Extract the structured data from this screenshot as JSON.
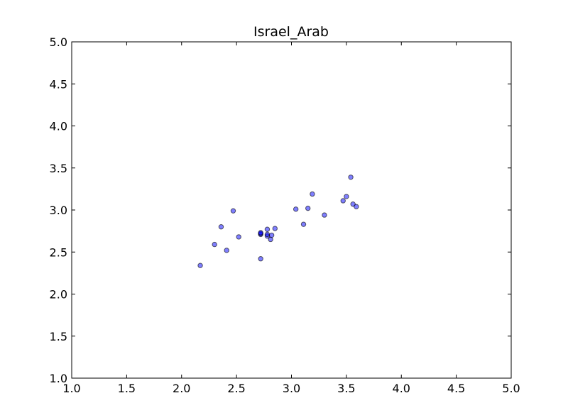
{
  "chart_data": {
    "type": "scatter",
    "title": "Israel_Arab",
    "xlabel": "",
    "ylabel": "",
    "xlim": [
      1.0,
      5.0
    ],
    "ylim": [
      1.0,
      5.0
    ],
    "xticks": [
      "1.0",
      "1.5",
      "2.0",
      "2.5",
      "3.0",
      "3.5",
      "4.0",
      "4.5",
      "5.0"
    ],
    "yticks": [
      "1.0",
      "1.5",
      "2.0",
      "2.5",
      "3.0",
      "3.5",
      "4.0",
      "4.5",
      "5.0"
    ],
    "grid": false,
    "series": [
      {
        "name": "Israel_Arab",
        "color": "#0000ff",
        "points": [
          [
            2.17,
            2.34
          ],
          [
            2.3,
            2.59
          ],
          [
            2.36,
            2.8
          ],
          [
            2.41,
            2.52
          ],
          [
            2.47,
            2.99
          ],
          [
            2.52,
            2.68
          ],
          [
            2.72,
            2.42
          ],
          [
            2.72,
            2.71
          ],
          [
            2.72,
            2.72
          ],
          [
            2.72,
            2.73
          ],
          [
            2.78,
            2.69
          ],
          [
            2.78,
            2.71
          ],
          [
            2.78,
            2.77
          ],
          [
            2.81,
            2.65
          ],
          [
            2.82,
            2.7
          ],
          [
            2.85,
            2.78
          ],
          [
            3.04,
            3.01
          ],
          [
            3.11,
            2.83
          ],
          [
            3.15,
            3.02
          ],
          [
            3.19,
            3.19
          ],
          [
            3.3,
            2.94
          ],
          [
            3.47,
            3.11
          ],
          [
            3.5,
            3.16
          ],
          [
            3.54,
            3.39
          ],
          [
            3.56,
            3.07
          ],
          [
            3.59,
            3.04
          ]
        ]
      }
    ]
  }
}
